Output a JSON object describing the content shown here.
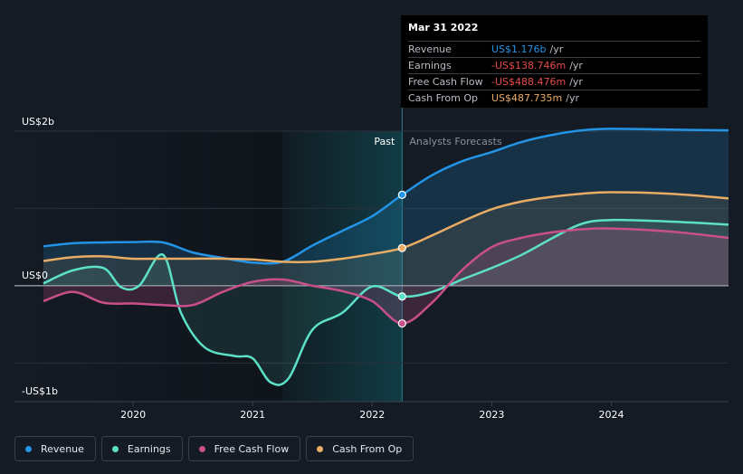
{
  "chart_data": {
    "type": "line",
    "y_tick_labels": [
      "US$2b",
      "US$0",
      "-US$1b"
    ],
    "x_tick_labels": [
      "2020",
      "2021",
      "2022",
      "2023",
      "2024"
    ],
    "past_label": "Past",
    "forecast_label": "Analysts Forecasts",
    "ylim": [
      -1.5,
      2.0
    ],
    "xlim": [
      2019.25,
      2024.98
    ],
    "divider_x": 2022.25,
    "colors": {
      "Revenue": "#2394e6",
      "Earnings": "#5ce0c8",
      "Free Cash Flow": "#c94f8a",
      "Cash From Op": "#e8ac64"
    },
    "series": [
      {
        "name": "Revenue",
        "points": [
          [
            2019.25,
            0.51
          ],
          [
            2019.5,
            0.55
          ],
          [
            2019.75,
            0.56
          ],
          [
            2020.0,
            0.565
          ],
          [
            2020.25,
            0.56
          ],
          [
            2020.5,
            0.43
          ],
          [
            2020.75,
            0.36
          ],
          [
            2021.0,
            0.3
          ],
          [
            2021.25,
            0.31
          ],
          [
            2021.5,
            0.52
          ],
          [
            2021.75,
            0.71
          ],
          [
            2022.0,
            0.9
          ],
          [
            2022.25,
            1.176
          ],
          [
            2022.5,
            1.43
          ],
          [
            2022.75,
            1.61
          ],
          [
            2023.0,
            1.73
          ],
          [
            2023.25,
            1.86
          ],
          [
            2023.5,
            1.95
          ],
          [
            2023.75,
            2.01
          ],
          [
            2024.0,
            2.03
          ],
          [
            2024.5,
            2.02
          ],
          [
            2024.98,
            2.01
          ]
        ]
      },
      {
        "name": "Earnings",
        "points": [
          [
            2019.25,
            0.03
          ],
          [
            2019.5,
            0.2
          ],
          [
            2019.75,
            0.23
          ],
          [
            2019.9,
            -0.02
          ],
          [
            2020.05,
            0.0
          ],
          [
            2020.25,
            0.4
          ],
          [
            2020.4,
            -0.35
          ],
          [
            2020.6,
            -0.8
          ],
          [
            2020.85,
            -0.91
          ],
          [
            2021.0,
            -0.94
          ],
          [
            2021.15,
            -1.25
          ],
          [
            2021.3,
            -1.2
          ],
          [
            2021.5,
            -0.57
          ],
          [
            2021.75,
            -0.35
          ],
          [
            2022.0,
            -0.01
          ],
          [
            2022.25,
            -0.139
          ],
          [
            2022.5,
            -0.08
          ],
          [
            2022.75,
            0.08
          ],
          [
            2023.0,
            0.23
          ],
          [
            2023.25,
            0.4
          ],
          [
            2023.5,
            0.61
          ],
          [
            2023.75,
            0.8
          ],
          [
            2024.0,
            0.85
          ],
          [
            2024.5,
            0.83
          ],
          [
            2024.98,
            0.79
          ]
        ]
      },
      {
        "name": "Free Cash Flow",
        "points": [
          [
            2019.25,
            -0.2
          ],
          [
            2019.5,
            -0.08
          ],
          [
            2019.75,
            -0.22
          ],
          [
            2020.0,
            -0.23
          ],
          [
            2020.25,
            -0.25
          ],
          [
            2020.5,
            -0.25
          ],
          [
            2020.75,
            -0.08
          ],
          [
            2021.0,
            0.05
          ],
          [
            2021.25,
            0.08
          ],
          [
            2021.5,
            0.0
          ],
          [
            2021.75,
            -0.07
          ],
          [
            2022.0,
            -0.2
          ],
          [
            2022.25,
            -0.488
          ],
          [
            2022.5,
            -0.22
          ],
          [
            2022.75,
            0.2
          ],
          [
            2023.0,
            0.5
          ],
          [
            2023.25,
            0.62
          ],
          [
            2023.5,
            0.69
          ],
          [
            2023.75,
            0.73
          ],
          [
            2024.0,
            0.74
          ],
          [
            2024.5,
            0.7
          ],
          [
            2024.98,
            0.62
          ]
        ]
      },
      {
        "name": "Cash From Op",
        "points": [
          [
            2019.25,
            0.32
          ],
          [
            2019.5,
            0.37
          ],
          [
            2019.75,
            0.38
          ],
          [
            2020.0,
            0.35
          ],
          [
            2020.25,
            0.35
          ],
          [
            2020.5,
            0.35
          ],
          [
            2020.75,
            0.35
          ],
          [
            2021.0,
            0.34
          ],
          [
            2021.25,
            0.31
          ],
          [
            2021.5,
            0.31
          ],
          [
            2021.75,
            0.35
          ],
          [
            2022.0,
            0.41
          ],
          [
            2022.25,
            0.488
          ],
          [
            2022.5,
            0.65
          ],
          [
            2022.75,
            0.83
          ],
          [
            2023.0,
            0.99
          ],
          [
            2023.25,
            1.09
          ],
          [
            2023.5,
            1.15
          ],
          [
            2023.75,
            1.19
          ],
          [
            2024.0,
            1.21
          ],
          [
            2024.5,
            1.19
          ],
          [
            2024.98,
            1.13
          ]
        ]
      }
    ],
    "highlight_x": 2022.25
  },
  "tooltip": {
    "date": "Mar 31 2022",
    "rows": [
      {
        "name": "Revenue",
        "value": "US$1.176b",
        "unit": "/yr",
        "color": "#2394e6"
      },
      {
        "name": "Earnings",
        "value": "-US$138.746m",
        "unit": "/yr",
        "color": "#e84b4b"
      },
      {
        "name": "Free Cash Flow",
        "value": "-US$488.476m",
        "unit": "/yr",
        "color": "#e84b4b"
      },
      {
        "name": "Cash From Op",
        "value": "US$487.735m",
        "unit": "/yr",
        "color": "#e8ac64"
      }
    ]
  },
  "legend": [
    {
      "label": "Revenue",
      "color": "#2394e6"
    },
    {
      "label": "Earnings",
      "color": "#5ce0c8"
    },
    {
      "label": "Free Cash Flow",
      "color": "#c94f8a"
    },
    {
      "label": "Cash From Op",
      "color": "#e8ac64"
    }
  ]
}
